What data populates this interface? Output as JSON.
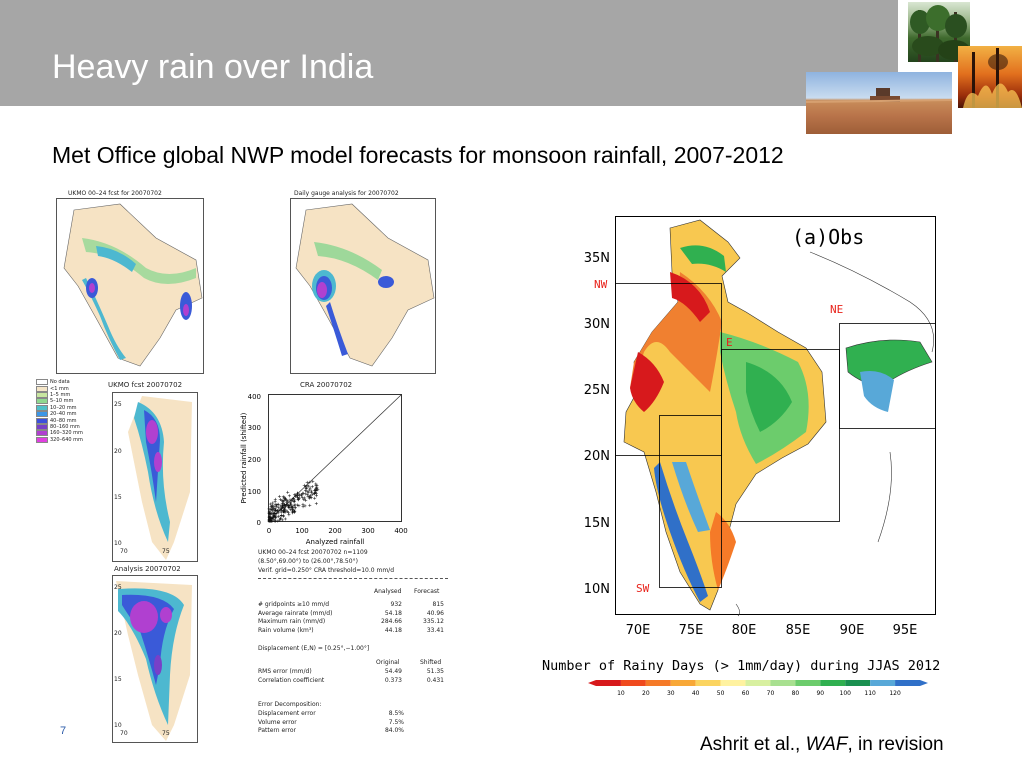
{
  "slide": {
    "title": "Heavy rain over India",
    "subtitle": "Met Office global NWP model forecasts for monsoon rainfall, 2007-2012",
    "page_number": "7",
    "reference_prefix": "Ashrit et al., ",
    "reference_journal": "WAF",
    "reference_suffix": ", in revision"
  },
  "panels": {
    "fcst_top_title": "UKMO 00–24 fcst for 20070702",
    "analysis_top_title": "Daily gauge analysis for 20070702",
    "fcst_zoom_title": "UKMO fcst 20070702",
    "analysis_zoom_title": "Analysis 20070702",
    "cra_title": "CRA 20070702",
    "legend_items": [
      "No data",
      "<1 mm",
      "1–5 mm",
      "5–10 mm",
      "10–20 mm",
      "20–40 mm",
      "40–80 mm",
      "80–160 mm",
      "160–320 mm",
      "320–640 mm"
    ],
    "legend_colors": [
      "#ffffff",
      "#f5e6c8",
      "#c8e6a0",
      "#90d890",
      "#50c0c8",
      "#3c96e6",
      "#3c50dc",
      "#7840c8",
      "#b040d0",
      "#e040e0"
    ],
    "zoom_ticks_y": [
      "25",
      "20",
      "15",
      "10"
    ],
    "zoom_ticks_x": [
      "70",
      "75"
    ],
    "scatter": {
      "ylabel": "Predicted rainfall (shifted)",
      "xlabel": "Analyzed rainfall",
      "xticks": [
        "0",
        "100",
        "200",
        "300",
        "400"
      ],
      "yticks": [
        "400",
        "300",
        "200",
        "100",
        "0"
      ]
    },
    "stats": {
      "header1": "UKMO 00–24 fcst 20070702   n=1109",
      "header2": "(8.50°,69.00°) to (26.00°,78.50°)",
      "header3": "Verif. grid=0.250°   CRA threshold=10.0 mm/d",
      "col_analysed": "Analysed",
      "col_forecast": "Forecast",
      "rows": [
        {
          "label": "# gridpoints ≥10 mm/d",
          "a": "932",
          "f": "815"
        },
        {
          "label": "Average rainrate (mm/d)",
          "a": "54.18",
          "f": "40.96"
        },
        {
          "label": "Maximum rain (mm/d)",
          "a": "284.66",
          "f": "335.12"
        },
        {
          "label": "Rain volume (km³)",
          "a": "44.18",
          "f": "33.41"
        }
      ],
      "displacement": "Displacement (E,N) = [0.25°,−1.00°]",
      "col_original": "Original",
      "col_shifted": "Shifted",
      "rows2": [
        {
          "label": "RMS error (mm/d)",
          "a": "54.49",
          "f": "51.35"
        },
        {
          "label": "Correlation coefficient",
          "a": "0.373",
          "f": "0.431"
        }
      ],
      "decomp_title": "Error Decomposition:",
      "decomp": [
        {
          "label": "Displacement error",
          "v": "8.5%"
        },
        {
          "label": "Volume error",
          "v": "7.5%"
        },
        {
          "label": "Pattern error",
          "v": "84.0%"
        }
      ]
    }
  },
  "obs_map": {
    "title": "(a)Obs",
    "lat_labels": [
      "35N",
      "30N",
      "25N",
      "20N",
      "15N",
      "10N"
    ],
    "lon_labels": [
      "70E",
      "75E",
      "80E",
      "85E",
      "90E",
      "95E"
    ],
    "regions": [
      "NW",
      "NE",
      "E",
      "SW"
    ],
    "region_color": "#e8221a",
    "caption": "Number of Rainy Days (> 1mm/day) during JJAS 2012",
    "colorbar_ticks": [
      "10",
      "20",
      "30",
      "40",
      "50",
      "60",
      "70",
      "80",
      "90",
      "100",
      "110",
      "120"
    ],
    "colorbar_colors": [
      "#d7191c",
      "#f04a1e",
      "#f57a28",
      "#f8a838",
      "#fbd460",
      "#fff2a0",
      "#d8f0a0",
      "#a8e090",
      "#6ccc6c",
      "#30b050",
      "#1a9050",
      "#58a8d8",
      "#3070c8"
    ]
  }
}
